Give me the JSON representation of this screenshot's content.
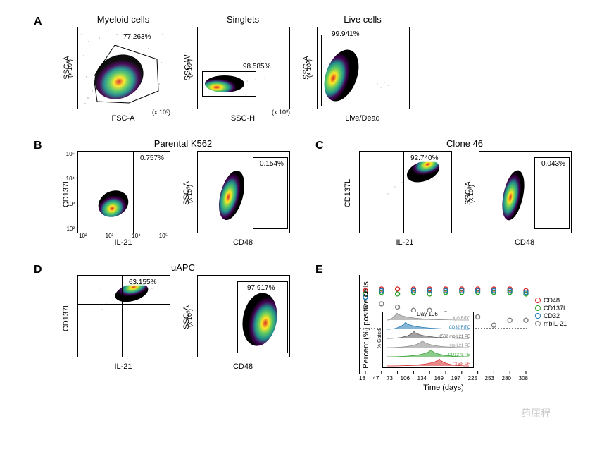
{
  "panels": {
    "A": {
      "label": "A"
    },
    "B": {
      "label": "B"
    },
    "C": {
      "label": "C"
    },
    "D": {
      "label": "D"
    },
    "E": {
      "label": "E"
    }
  },
  "titles": {
    "myeloid": "Myeloid cells",
    "singlets": "Singlets",
    "live": "Live cells",
    "parental": "Parental K562",
    "clone46": "Clone 46",
    "uapc": "uAPC"
  },
  "axes": {
    "ssc_a": "SSC-A",
    "ssc_w": "SSC-W",
    "fsc_a": "FSC-A",
    "ssc_h": "SSC-H",
    "livedead": "Live/Dead",
    "cd137l": "CD137L",
    "il21": "IL-21",
    "cd48": "CD48",
    "percent_pos": "Percent (%) positive cells",
    "time_days": "Time (days)",
    "x1000": "(x 10³)",
    "x1000r": "(x 10³)"
  },
  "gates": {
    "myeloid_pct": "77.263%",
    "singlets_pct": "98.585%",
    "live_pct": "99.941%",
    "parental_q": "0.757%",
    "parental_cd48": "0.154%",
    "clone46_q": "92.740%",
    "clone46_cd48": "0.043%",
    "uapc_q": "63.155%",
    "uapc_cd48": "97.917%"
  },
  "panelE": {
    "type": "scatter",
    "ylim": [
      50,
      105
    ],
    "dotted_y": 75,
    "x_ticks": [
      "18",
      "47",
      "73",
      "106",
      "134",
      "169",
      "197",
      "225",
      "253",
      "280",
      "308"
    ],
    "legend": [
      {
        "label": "CD48",
        "color": "#d62728"
      },
      {
        "label": "CD137L",
        "color": "#2ca02c"
      },
      {
        "label": "CD32",
        "color": "#1f77b4"
      },
      {
        "label": "mbIL-21",
        "color": "#7f7f7f"
      }
    ],
    "inset": {
      "title": "Day 106",
      "ylabel": "% Gated",
      "items": [
        {
          "label": "IgG FITC",
          "color": "#888888"
        },
        {
          "label": "CD32 FITC",
          "color": "#1f77b4"
        },
        {
          "label": "K562 mbIL21 PE",
          "color": "#555555"
        },
        {
          "label": "mbIL21 PE",
          "color": "#888888"
        },
        {
          "label": "CD137L PE",
          "color": "#2ca02c"
        },
        {
          "label": "CD48 PE",
          "color": "#d62728"
        }
      ]
    },
    "series_colors": {
      "CD48": "#d62728",
      "CD137L": "#2ca02c",
      "CD32": "#1f77b4",
      "mbIL-21": "#7f7f7f"
    },
    "data": {
      "CD48": [
        98,
        99,
        99,
        99,
        99,
        99,
        99,
        99,
        99,
        99,
        98
      ],
      "CD137L": [
        96,
        97,
        96,
        97,
        96,
        97,
        97,
        97,
        97,
        97,
        96
      ],
      "CD32": [
        94,
        98,
        75,
        98,
        98,
        98,
        98,
        98,
        98,
        98,
        97
      ],
      "mbIL-21": [
        88,
        90,
        88,
        86,
        86,
        84,
        80,
        82,
        77,
        80,
        80
      ]
    }
  },
  "colors": {
    "density_gradient": [
      "#000000",
      "#440154",
      "#3b528b",
      "#21918c",
      "#5ec962",
      "#fde725",
      "#ff7f0e",
      "#d62728"
    ]
  },
  "plot_ticks": {
    "linear_y": [
      "50",
      "100",
      "150",
      "200",
      "250"
    ],
    "linear_x": [
      "50",
      "100",
      "150",
      "200",
      "250"
    ],
    "log_x": [
      "10²",
      "10³",
      "10⁴",
      "10⁵"
    ],
    "log_y": [
      "10²",
      "10³",
      "10⁴",
      "10⁵"
    ],
    "percent_y": [
      "60",
      "80",
      "100"
    ]
  },
  "watermark": "药厘程"
}
